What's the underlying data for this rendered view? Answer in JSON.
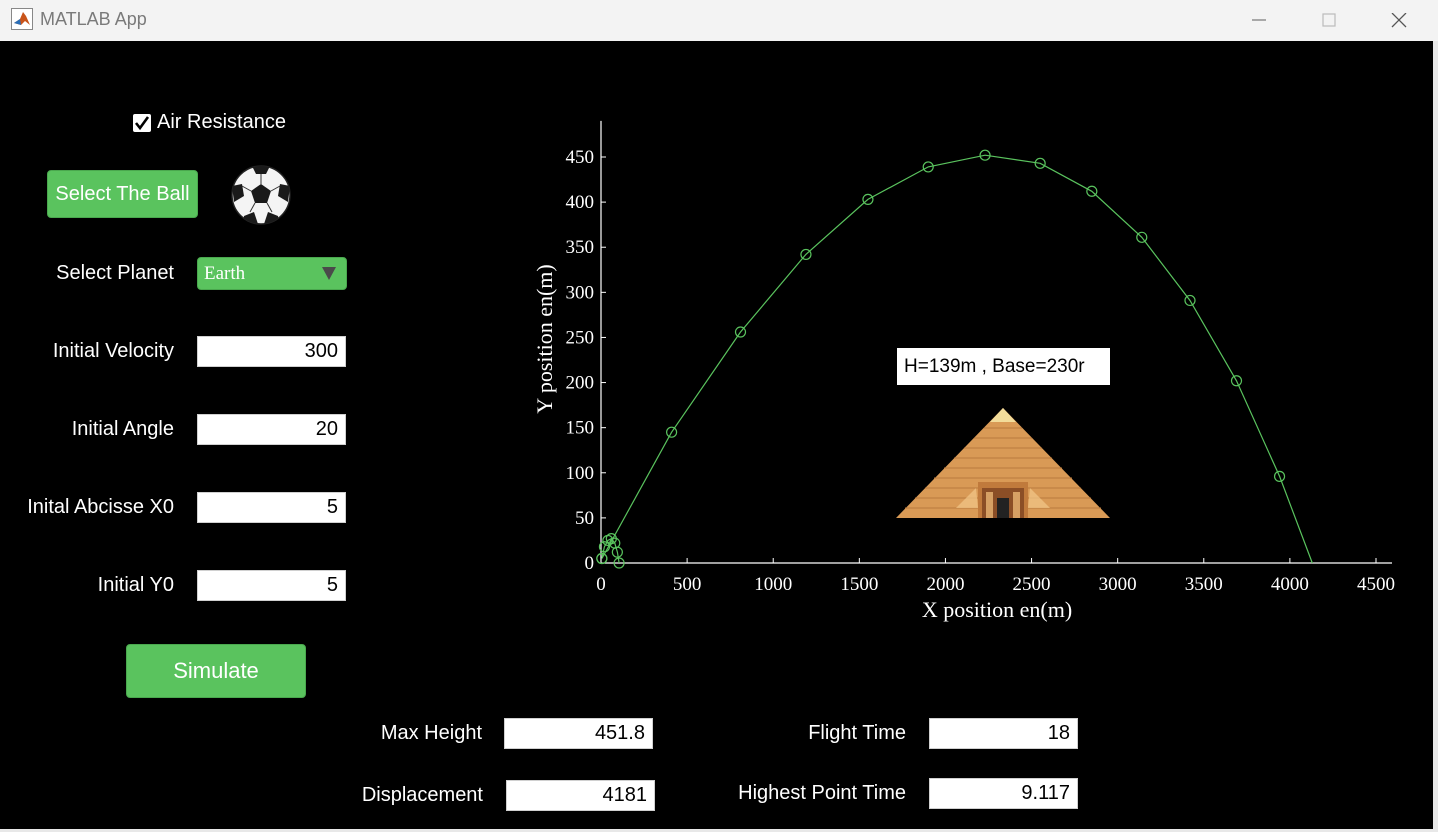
{
  "window": {
    "title": "MATLAB App"
  },
  "controls": {
    "air_resistance_label": "Air Resistance",
    "air_resistance_checked": true,
    "select_ball_label": "Select The Ball",
    "ball_icon": "soccer-ball-icon",
    "select_planet_label": "Select Planet",
    "planet_value": "Earth",
    "initial_velocity_label": "Initial Velocity",
    "initial_velocity_value": "300",
    "initial_angle_label": "Initial Angle",
    "initial_angle_value": "20",
    "initial_x0_label": "Inital Abcisse X0",
    "initial_x0_value": "5",
    "initial_y0_label": "Initial Y0",
    "initial_y0_value": "5",
    "simulate_label": "Simulate"
  },
  "results": {
    "max_height_label": "Max Height",
    "max_height_value": "451.8",
    "flight_time_label": "Flight Time",
    "flight_time_value": "18",
    "displacement_label": "Displacement",
    "displacement_value": "4181",
    "highest_point_time_label": "Highest Point Time",
    "highest_point_time_value": "9.117"
  },
  "pyramid": {
    "label": "H=139m , Base=230r",
    "image": "pyramid-image"
  },
  "colors": {
    "accent": "#5ac35e",
    "background": "#000000",
    "trajectory": "#5ac35e"
  },
  "chart_data": {
    "type": "line",
    "xlabel": "X position en(m)",
    "ylabel": "Y position en(m)",
    "xlim": [
      0,
      4500
    ],
    "ylim": [
      0,
      490
    ],
    "xticks": [
      0,
      500,
      1000,
      1500,
      2000,
      2500,
      3000,
      3500,
      4000,
      4500
    ],
    "yticks": [
      0,
      50,
      100,
      150,
      200,
      250,
      300,
      350,
      400,
      450
    ],
    "grid": false,
    "series": [
      {
        "marker": "circle",
        "x": [
          5,
          410,
          810,
          1190,
          1550,
          1900,
          2230,
          2550,
          2850,
          3140,
          3420,
          3690,
          3940,
          4130
        ],
        "y": [
          5,
          145,
          256,
          342,
          403,
          439,
          452,
          443,
          412,
          361,
          291,
          202,
          96,
          0
        ]
      },
      {
        "marker": "circle",
        "x": [
          5,
          20,
          40,
          60,
          80,
          95,
          105
        ],
        "y": [
          5,
          18,
          25,
          27,
          22,
          12,
          0
        ]
      }
    ]
  }
}
